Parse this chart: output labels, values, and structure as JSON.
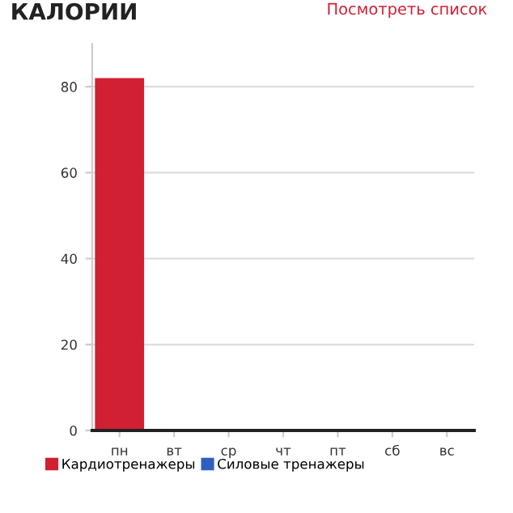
{
  "chart_data": {
    "type": "bar",
    "title": "КАЛОРИИ",
    "annotations": [
      "Посмотреть список"
    ],
    "categories": [
      "пн",
      "вт",
      "ср",
      "чт",
      "пт",
      "сб",
      "вс"
    ],
    "stacked": true,
    "series": [
      {
        "name": "Кардиотренажеры",
        "color": "#d11f33",
        "values": [
          82,
          0,
          0,
          0,
          0,
          0,
          0
        ]
      },
      {
        "name": "Силовые тренажеры",
        "color": "#2f5fbf",
        "values": [
          0,
          0,
          0,
          0,
          0,
          0,
          0
        ]
      }
    ],
    "ylim": [
      0,
      90
    ],
    "yticks": [
      0,
      20,
      40,
      60,
      80
    ],
    "grid": "y",
    "legend": "bottom left"
  }
}
